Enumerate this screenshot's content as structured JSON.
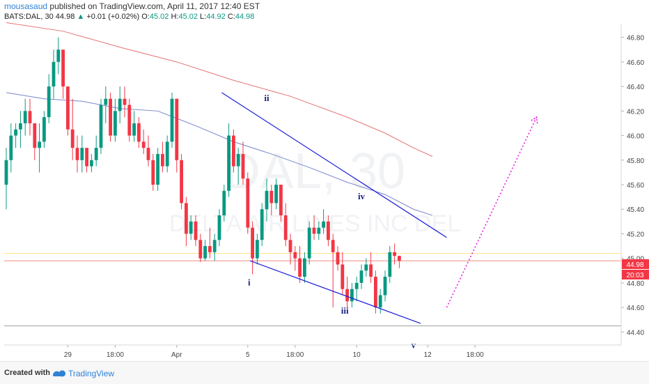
{
  "header": {
    "author": "mousasaud",
    "published": "published on TradingView.com, April 11, 2017 12:40 EST",
    "symbol": "BATS:DAL, 30",
    "last": "44.98",
    "change": "+0.01 (+0.02%)",
    "o_label": "O:",
    "o_val": "45.02",
    "h_label": "H:",
    "h_val": "45.02",
    "l_label": "L:",
    "l_val": "44.92",
    "c_label": "C:",
    "c_val": "44.98"
  },
  "watermark": {
    "ticker": "DAL, 30",
    "company": "DELTA AIR LINES INC DEL"
  },
  "price_tags": {
    "last": "44.98",
    "countdown": "20:03"
  },
  "footer": {
    "created": "Created with",
    "brand": "TradingView"
  },
  "colors": {
    "up": "#089981",
    "down": "#f23645",
    "accent": "#2f82d6",
    "wedge": "#1c1cd8",
    "wave_label": "#1a237e",
    "projection": "#e91ee0",
    "ma_slow": "#e57373",
    "ma_fast": "#7986cb"
  },
  "chart_data": {
    "type": "candlestick",
    "ylim": [
      44.3,
      46.9
    ],
    "y_ticks": [
      "46.80",
      "46.60",
      "46.40",
      "46.20",
      "46.00",
      "45.80",
      "45.60",
      "45.40",
      "45.20",
      "45.00",
      "44.80",
      "44.60",
      "44.40"
    ],
    "x_ticks": [
      {
        "label": "29",
        "bar": 13
      },
      {
        "label": "18:00",
        "bar": 23
      },
      {
        "label": "Apr",
        "bar": 36
      },
      {
        "label": "5",
        "bar": 51
      },
      {
        "label": "18:00",
        "bar": 61
      },
      {
        "label": "10",
        "bar": 74
      },
      {
        "label": "12",
        "bar": 89
      },
      {
        "label": "18:00",
        "bar": 99
      }
    ],
    "candles": [
      [
        45.6,
        45.9,
        45.4,
        45.8
      ],
      [
        45.8,
        46.1,
        45.7,
        46.0
      ],
      [
        46.0,
        46.1,
        45.9,
        46.05
      ],
      [
        46.05,
        46.2,
        45.9,
        46.1
      ],
      [
        46.1,
        46.3,
        46.0,
        46.2
      ],
      [
        46.2,
        46.3,
        46.0,
        46.1
      ],
      [
        46.1,
        46.1,
        45.8,
        45.9
      ],
      [
        45.9,
        46.1,
        45.7,
        45.95
      ],
      [
        45.95,
        46.2,
        45.9,
        46.15
      ],
      [
        46.15,
        46.5,
        46.1,
        46.4
      ],
      [
        46.4,
        46.7,
        46.3,
        46.6
      ],
      [
        46.6,
        46.8,
        46.5,
        46.7
      ],
      [
        46.7,
        46.7,
        46.3,
        46.4
      ],
      [
        46.4,
        46.4,
        46.0,
        46.05
      ],
      [
        46.05,
        46.3,
        45.8,
        45.9
      ],
      [
        45.9,
        46.0,
        45.7,
        45.8
      ],
      [
        45.8,
        46.0,
        45.7,
        45.9
      ],
      [
        45.9,
        45.9,
        45.7,
        45.75
      ],
      [
        45.75,
        45.85,
        45.7,
        45.8
      ],
      [
        45.8,
        46.0,
        45.75,
        45.9
      ],
      [
        45.9,
        46.3,
        45.85,
        46.25
      ],
      [
        46.25,
        46.4,
        46.1,
        46.3
      ],
      [
        46.3,
        46.35,
        45.95,
        46.0
      ],
      [
        46.0,
        46.3,
        45.95,
        46.2
      ],
      [
        46.2,
        46.4,
        46.1,
        46.3
      ],
      [
        46.3,
        46.4,
        46.15,
        46.25
      ],
      [
        46.25,
        46.3,
        45.95,
        46.0
      ],
      [
        46.0,
        46.2,
        45.95,
        46.1
      ],
      [
        46.1,
        46.15,
        45.9,
        45.95
      ],
      [
        45.95,
        46.05,
        45.85,
        45.9
      ],
      [
        45.9,
        46.0,
        45.75,
        45.8
      ],
      [
        45.8,
        45.85,
        45.55,
        45.6
      ],
      [
        45.6,
        45.9,
        45.55,
        45.85
      ],
      [
        45.85,
        45.95,
        45.7,
        45.75
      ],
      [
        45.75,
        46.0,
        45.7,
        45.95
      ],
      [
        45.95,
        46.35,
        45.9,
        46.3
      ],
      [
        46.3,
        46.3,
        45.7,
        45.8
      ],
      [
        45.8,
        45.85,
        45.4,
        45.45
      ],
      [
        45.45,
        45.5,
        45.1,
        45.2
      ],
      [
        45.2,
        45.35,
        45.15,
        45.3
      ],
      [
        45.3,
        45.35,
        45.1,
        45.15
      ],
      [
        45.15,
        45.2,
        44.97,
        45.0
      ],
      [
        45.0,
        45.15,
        44.98,
        45.1
      ],
      [
        45.1,
        45.25,
        45.0,
        45.05
      ],
      [
        45.05,
        45.2,
        44.98,
        45.15
      ],
      [
        45.15,
        45.4,
        45.1,
        45.35
      ],
      [
        45.35,
        45.6,
        45.3,
        45.55
      ],
      [
        45.55,
        46.1,
        45.5,
        46.0
      ],
      [
        46.0,
        46.05,
        45.7,
        45.75
      ],
      [
        45.75,
        45.9,
        45.6,
        45.85
      ],
      [
        45.85,
        45.95,
        45.6,
        45.65
      ],
      [
        45.65,
        45.7,
        45.2,
        45.25
      ],
      [
        45.25,
        45.3,
        44.87,
        45.0
      ],
      [
        45.0,
        45.2,
        44.95,
        45.15
      ],
      [
        45.15,
        45.45,
        45.1,
        45.4
      ],
      [
        45.4,
        45.65,
        45.3,
        45.55
      ],
      [
        45.55,
        45.6,
        45.35,
        45.45
      ],
      [
        45.45,
        45.65,
        45.4,
        45.6
      ],
      [
        45.6,
        45.6,
        45.3,
        45.35
      ],
      [
        45.35,
        45.45,
        45.1,
        45.15
      ],
      [
        45.15,
        45.2,
        44.95,
        45.05
      ],
      [
        45.05,
        45.1,
        44.9,
        45.0
      ],
      [
        45.0,
        45.1,
        44.8,
        44.85
      ],
      [
        44.85,
        45.05,
        44.8,
        45.0
      ],
      [
        45.0,
        45.3,
        44.95,
        45.25
      ],
      [
        45.25,
        45.35,
        45.15,
        45.2
      ],
      [
        45.2,
        45.3,
        45.15,
        45.25
      ],
      [
        45.25,
        45.4,
        45.2,
        45.3
      ],
      [
        45.3,
        45.35,
        45.1,
        45.15
      ],
      [
        45.15,
        45.2,
        44.6,
        45.05
      ],
      [
        45.05,
        45.1,
        44.9,
        44.95
      ],
      [
        44.95,
        45.05,
        44.7,
        44.75
      ],
      [
        44.75,
        44.85,
        44.6,
        44.65
      ],
      [
        44.65,
        44.8,
        44.6,
        44.75
      ],
      [
        44.75,
        44.85,
        44.65,
        44.8
      ],
      [
        44.8,
        44.95,
        44.75,
        44.9
      ],
      [
        44.9,
        45.0,
        44.85,
        44.95
      ],
      [
        44.95,
        45.05,
        44.8,
        44.85
      ],
      [
        44.85,
        44.9,
        44.55,
        44.6
      ],
      [
        44.6,
        44.75,
        44.55,
        44.7
      ],
      [
        44.7,
        44.9,
        44.65,
        44.85
      ],
      [
        44.85,
        45.1,
        44.8,
        45.05
      ],
      [
        45.05,
        45.12,
        44.95,
        45.02
      ],
      [
        45.02,
        45.02,
        44.92,
        44.98
      ]
    ],
    "ma_slow": [
      [
        0,
        46.92
      ],
      [
        12,
        46.85
      ],
      [
        24,
        46.72
      ],
      [
        36,
        46.6
      ],
      [
        48,
        46.45
      ],
      [
        60,
        46.32
      ],
      [
        72,
        46.15
      ],
      [
        80,
        46.02
      ],
      [
        86,
        45.9
      ],
      [
        90,
        45.83
      ]
    ],
    "ma_fast": [
      [
        0,
        46.35
      ],
      [
        8,
        46.3
      ],
      [
        16,
        46.28
      ],
      [
        24,
        46.22
      ],
      [
        32,
        46.2
      ],
      [
        40,
        46.08
      ],
      [
        48,
        45.95
      ],
      [
        56,
        45.85
      ],
      [
        64,
        45.74
      ],
      [
        72,
        45.62
      ],
      [
        80,
        45.52
      ],
      [
        86,
        45.4
      ],
      [
        90,
        45.35
      ]
    ],
    "wedge_upper": [
      [
        45.5,
        46.35
      ],
      [
        93,
        45.17
      ]
    ],
    "wedge_lower": [
      [
        51.5,
        44.98
      ],
      [
        87.5,
        44.47
      ]
    ],
    "projection": [
      [
        93,
        44.6
      ],
      [
        112,
        46.15
      ]
    ],
    "waves": [
      {
        "label": "i",
        "bar": 51.3,
        "price": 44.78
      },
      {
        "label": "ii",
        "bar": 55,
        "price": 46.28
      },
      {
        "label": "iii",
        "bar": 71.5,
        "price": 44.55
      },
      {
        "label": "iv",
        "bar": 75,
        "price": 45.48
      },
      {
        "label": "v",
        "bar": 86,
        "price": 44.27
      }
    ],
    "hlines": [
      {
        "price": 45.04,
        "color": "#ffe082"
      },
      {
        "price": 44.98,
        "color": "#f28b82"
      },
      {
        "price": 44.45,
        "color": "#9e9e9e"
      }
    ]
  }
}
